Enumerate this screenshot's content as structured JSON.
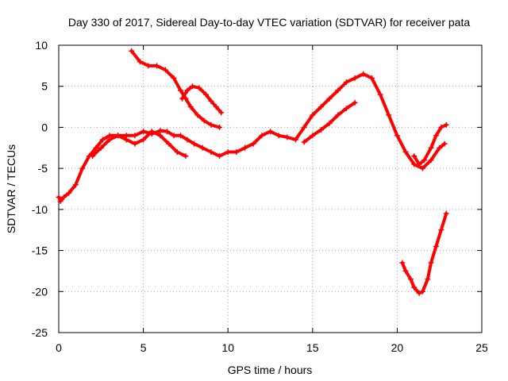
{
  "chart_data": {
    "type": "scatter",
    "title": "Day 330 of 2017, Sidereal Day-to-day VTEC variation (SDTVAR) for receiver pata",
    "xlabel": "GPS time / hours",
    "ylabel": "SDTVAR / TECUs",
    "xlim": [
      0,
      25
    ],
    "ylim": [
      -25,
      10
    ],
    "xticks": [
      0,
      5,
      10,
      15,
      20,
      25
    ],
    "yticks": [
      -25,
      -20,
      -15,
      -10,
      -5,
      0,
      5,
      10
    ],
    "xtick_labels": [
      "0",
      "5",
      "10",
      "15",
      "20",
      "25"
    ],
    "ytick_labels": [
      "-25",
      "-20",
      "-15",
      "-10",
      "-5",
      "0",
      "5",
      "10"
    ],
    "grid": true,
    "legend": "none",
    "marker": "plus",
    "color": "#ff0000",
    "series": [
      {
        "x": [
          0.0,
          0.1,
          0.3,
          0.6,
          1.0,
          1.4,
          1.8,
          2.2,
          2.6,
          3.0,
          3.5,
          4.0,
          4.5,
          5.0,
          5.5,
          6.0,
          6.4,
          6.8,
          7.2,
          7.6,
          8.0,
          8.5,
          9.0,
          9.5,
          10.0,
          10.5,
          11.0,
          11.5,
          12.0,
          12.5,
          13.0,
          13.5,
          14.0,
          14.5,
          15.0,
          15.5,
          16.0,
          16.5,
          17.0,
          17.5,
          18.0,
          18.5,
          19.0,
          19.5,
          20.0,
          20.5,
          21.0,
          21.5,
          22.0,
          22.5,
          22.8
        ],
        "y": [
          -8.5,
          -9.0,
          -8.5,
          -8.0,
          -7.0,
          -5.0,
          -3.5,
          -2.5,
          -1.5,
          -1.0,
          -1.0,
          -1.0,
          -1.0,
          -0.5,
          -0.8,
          -0.4,
          -0.5,
          -1.0,
          -1.0,
          -1.5,
          -2.0,
          -2.5,
          -3.0,
          -3.5,
          -3.0,
          -3.0,
          -2.5,
          -2.0,
          -1.0,
          -0.5,
          -1.0,
          -1.2,
          -1.5,
          0.0,
          1.5,
          2.5,
          3.5,
          4.5,
          5.5,
          6.0,
          6.5,
          6.0,
          4.0,
          1.5,
          -1.0,
          -3.0,
          -4.5,
          -5.0,
          -4.0,
          -2.5,
          -2.0
        ]
      },
      {
        "x": [
          2.0,
          2.5,
          3.0,
          3.5,
          4.0,
          4.5,
          5.0,
          5.5,
          6.0,
          6.5,
          7.0,
          7.5
        ],
        "y": [
          -3.5,
          -2.5,
          -1.5,
          -1.0,
          -1.5,
          -2.0,
          -1.5,
          -0.5,
          -1.0,
          -2.0,
          -3.0,
          -3.5
        ]
      },
      {
        "x": [
          4.3,
          4.8,
          5.3,
          5.8,
          6.3,
          6.8,
          7.2,
          7.5,
          7.8,
          8.2,
          8.6,
          9.0,
          9.5
        ],
        "y": [
          9.3,
          8.0,
          7.5,
          7.5,
          7.0,
          6.0,
          4.5,
          3.5,
          2.5,
          1.5,
          0.8,
          0.3,
          0.0
        ]
      },
      {
        "x": [
          7.3,
          7.6,
          7.9,
          8.3,
          8.7,
          9.0,
          9.3,
          9.6
        ],
        "y": [
          3.5,
          4.5,
          5.0,
          4.8,
          4.0,
          3.2,
          2.5,
          1.8
        ]
      },
      {
        "x": [
          14.5,
          15.0,
          15.5,
          16.0,
          16.5,
          17.0,
          17.5
        ],
        "y": [
          -1.8,
          -1.0,
          -0.3,
          0.5,
          1.5,
          2.3,
          3.0
        ]
      },
      {
        "x": [
          20.3,
          20.5,
          20.8,
          21.0,
          21.3,
          21.5,
          21.8,
          22.0,
          22.3,
          22.6,
          22.9
        ],
        "y": [
          -16.5,
          -17.5,
          -18.5,
          -19.5,
          -20.2,
          -20.0,
          -18.5,
          -16.5,
          -14.5,
          -12.5,
          -10.5
        ]
      },
      {
        "x": [
          21.0,
          21.3,
          21.6,
          22.0,
          22.3,
          22.6,
          22.9
        ],
        "y": [
          -3.5,
          -4.5,
          -4.0,
          -2.5,
          -1.0,
          0.0,
          0.3
        ]
      }
    ]
  }
}
